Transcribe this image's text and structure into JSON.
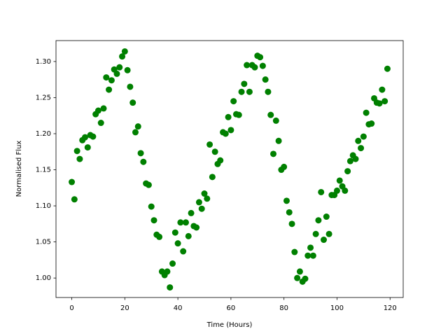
{
  "chart_data": {
    "type": "scatter",
    "x_label": "Time (Hours)",
    "y_label": "Normalised Flux",
    "color": "#008000",
    "grid": false,
    "xlim": [
      -5.95,
      124.95
    ],
    "ylim": [
      0.973,
      1.329
    ],
    "xticks": [
      0,
      20,
      40,
      60,
      80,
      100,
      120
    ],
    "yticks": [
      {
        "value": 1,
        "label": "1.00"
      },
      {
        "value": 1.05,
        "label": "1.05"
      },
      {
        "value": 1.1,
        "label": "1.10"
      },
      {
        "value": 1.15,
        "label": "1.15"
      },
      {
        "value": 1.2,
        "label": "1.20"
      },
      {
        "value": 1.25,
        "label": "1.25"
      },
      {
        "value": 1.3,
        "label": "1.30"
      }
    ],
    "x": [
      0,
      1,
      2,
      3,
      4,
      5,
      6,
      7,
      8,
      9,
      10,
      11,
      12,
      13,
      14,
      15,
      16,
      17,
      18,
      19,
      20,
      21,
      22,
      23,
      24,
      25,
      26,
      27,
      28,
      29,
      30,
      31,
      32,
      33,
      34,
      35,
      36,
      37,
      38,
      39,
      40,
      41,
      42,
      43,
      44,
      45,
      46,
      47,
      48,
      49,
      50,
      51,
      52,
      53,
      54,
      55,
      56,
      57,
      58,
      59,
      60,
      61,
      62,
      63,
      64,
      65,
      66,
      67,
      68,
      69,
      70,
      71,
      72,
      73,
      74,
      75,
      76,
      77,
      78,
      79,
      80,
      81,
      82,
      83,
      84,
      85,
      86,
      87,
      88,
      89,
      90,
      91,
      92,
      93,
      94,
      95,
      96,
      97,
      98,
      99,
      100,
      101,
      102,
      103,
      104,
      105,
      106,
      107,
      108,
      109,
      110,
      111,
      112,
      113,
      114,
      115,
      116,
      117,
      118,
      119
    ],
    "values": [
      1.133,
      1.109,
      1.176,
      1.165,
      1.191,
      1.195,
      1.181,
      1.198,
      1.196,
      1.227,
      1.232,
      1.215,
      1.235,
      1.278,
      1.261,
      1.274,
      1.289,
      1.283,
      1.292,
      1.307,
      1.314,
      1.288,
      1.265,
      1.243,
      1.202,
      1.21,
      1.173,
      1.161,
      1.131,
      1.129,
      1.099,
      1.08,
      1.06,
      1.057,
      1.009,
      1.004,
      1.009,
      0.987,
      1.02,
      1.063,
      1.048,
      1.077,
      1.037,
      1.077,
      1.058,
      1.09,
      1.072,
      1.07,
      1.105,
      1.096,
      1.117,
      1.11,
      1.185,
      1.14,
      1.175,
      1.158,
      1.163,
      1.202,
      1.2,
      1.223,
      1.205,
      1.245,
      1.227,
      1.226,
      1.258,
      1.269,
      1.295,
      1.258,
      1.295,
      1.292,
      1.308,
      1.306,
      1.294,
      1.275,
      1.258,
      1.226,
      1.172,
      1.218,
      1.19,
      1.15,
      1.154,
      1.107,
      1.091,
      1.075,
      1.036,
      1.0,
      1.009,
      0.995,
      0.999,
      1.031,
      1.042,
      1.031,
      1.061,
      1.08,
      1.119,
      1.053,
      1.085,
      1.061,
      1.115,
      1.115,
      1.121,
      1.135,
      1.127,
      1.121,
      1.148,
      1.162,
      1.17,
      1.165,
      1.19,
      1.18,
      1.196,
      1.229,
      1.213,
      1.214,
      1.249,
      1.243,
      1.242,
      1.261,
      1.245,
      1.29
    ]
  }
}
